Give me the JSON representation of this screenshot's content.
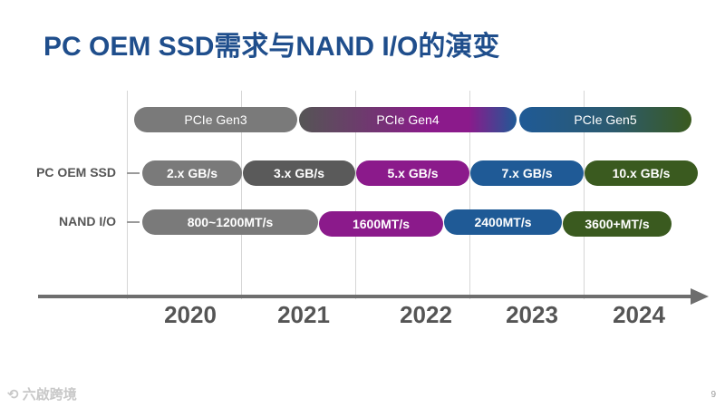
{
  "title": "PC OEM SSD需求与NAND I/O的演变",
  "pcie": {
    "gen3": "PCIe Gen3",
    "gen4": "PCIe Gen4",
    "gen5": "PCIe Gen5"
  },
  "rows": {
    "ssd_label": "PC OEM SSD",
    "nand_label": "NAND I/O"
  },
  "ssd_speeds": [
    "2.x GB/s",
    "3.x GB/s",
    "5.x GB/s",
    "7.x GB/s",
    "10.x GB/s"
  ],
  "nand_speeds": [
    "800~1200MT/s",
    "1600MT/s",
    "2400MT/s",
    "3600+MT/s"
  ],
  "years": [
    "2020",
    "2021",
    "2022",
    "2023",
    "2024"
  ],
  "footer": {
    "logo_text": "六啟跨境",
    "page_number": "9"
  },
  "colors": {
    "title": "#1f4e8c",
    "gray": "#7a7a7a",
    "dark_gray": "#5a5a5a",
    "purple": "#8b1a8b",
    "blue": "#1f5a96",
    "green": "#3a5a1f"
  }
}
